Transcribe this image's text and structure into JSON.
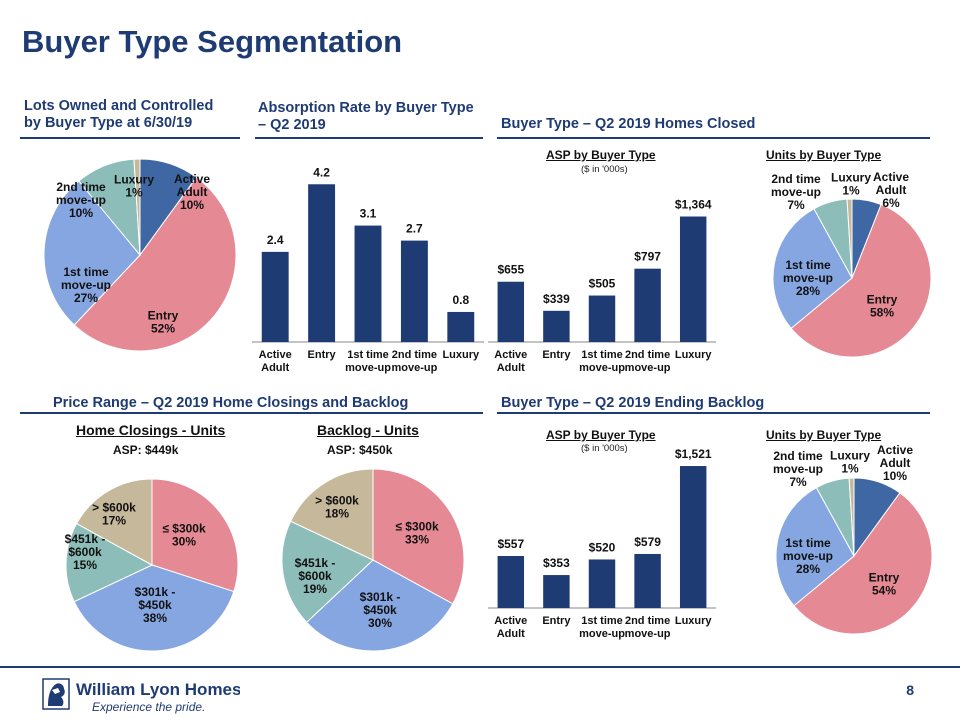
{
  "page": {
    "title": "Buyer Type Segmentation",
    "page_number": "8",
    "logo": {
      "name": "William Lyon Homes",
      "tagline": "Experience the pride."
    }
  },
  "colors": {
    "navy": "#1f3b73",
    "bar": "#1f3b73",
    "active_adult": "#3f67a4",
    "entry": "#e58a94",
    "first_time": "#86a6e2",
    "second_time": "#8dbdb8",
    "luxury": "#c6b89a"
  },
  "sections": {
    "lots": "Lots Owned and Controlled by Buyer Type at 6/30/19",
    "absorption": "Absorption Rate by Buyer Type – Q2 2019",
    "closed": "Buyer Type – Q2 2019 Homes Closed",
    "price": "Price Range – Q2 2019 Home Closings and Backlog",
    "backlog": "Buyer Type – Q2 2019 Ending Backlog"
  },
  "subheads": {
    "asp_closed": "ASP by Buyer Type",
    "asp_closed_note": "($ in '000s)",
    "units_closed": "Units by Buyer Type",
    "home_closings": "Home Closings - Units",
    "home_closings_asp": "ASP: $449k",
    "backlog_units": "Backlog - Units",
    "backlog_asp": "ASP: $450k",
    "asp_backlog": "ASP by Buyer Type",
    "asp_backlog_note": "($ in '000s)",
    "units_backlog": "Units by Buyer Type"
  },
  "chart_data": [
    {
      "id": "lots",
      "type": "pie",
      "labels": [
        "Active Adult",
        "Entry",
        "1st time move-up",
        "2nd time move-up",
        "Luxury"
      ],
      "values": [
        10,
        52,
        27,
        10,
        1
      ],
      "value_labels": [
        "10%",
        "52%",
        "27%",
        "10%",
        "1%"
      ]
    },
    {
      "id": "absorption",
      "type": "bar",
      "categories": [
        "Active Adult",
        "Entry",
        "1st time move-up",
        "2nd time move-up",
        "Luxury"
      ],
      "values": [
        2.4,
        4.2,
        3.1,
        2.7,
        0.8
      ],
      "value_labels": [
        "2.4",
        "4.2",
        "3.1",
        "2.7",
        "0.8"
      ],
      "ylim": [
        0,
        4.5
      ]
    },
    {
      "id": "asp_closed",
      "type": "bar",
      "categories": [
        "Active Adult",
        "Entry",
        "1st time move-up",
        "2nd time move-up",
        "Luxury"
      ],
      "values": [
        655,
        339,
        505,
        797,
        1364
      ],
      "value_labels": [
        "$655",
        "$339",
        "$505",
        "$797",
        "$1,364"
      ],
      "ylim": [
        0,
        1500
      ]
    },
    {
      "id": "units_closed",
      "type": "pie",
      "labels": [
        "Active Adult",
        "Entry",
        "1st time move-up",
        "2nd time move-up",
        "Luxury"
      ],
      "values": [
        6,
        58,
        28,
        7,
        1
      ],
      "value_labels": [
        "6%",
        "58%",
        "28%",
        "7%",
        "1%"
      ]
    },
    {
      "id": "home_closings",
      "type": "pie",
      "labels": [
        "≤ $300k",
        "$301k - $450k",
        "$451k - $600k",
        "> $600k"
      ],
      "values": [
        30,
        38,
        15,
        17
      ],
      "value_labels": [
        "30%",
        "38%",
        "15%",
        "17%"
      ]
    },
    {
      "id": "backlog_units",
      "type": "pie",
      "labels": [
        "≤ $300k",
        "$301k - $450k",
        "$451k - $600k",
        "> $600k"
      ],
      "values": [
        33,
        30,
        19,
        18
      ],
      "value_labels": [
        "33%",
        "30%",
        "19%",
        "18%"
      ]
    },
    {
      "id": "asp_backlog",
      "type": "bar",
      "categories": [
        "Active Adult",
        "Entry",
        "1st time move-up",
        "2nd time move-up",
        "Luxury"
      ],
      "values": [
        557,
        353,
        520,
        579,
        1521
      ],
      "value_labels": [
        "$557",
        "$353",
        "$520",
        "$579",
        "$1,521"
      ],
      "ylim": [
        0,
        1650
      ]
    },
    {
      "id": "units_backlog",
      "type": "pie",
      "labels": [
        "Active Adult",
        "Entry",
        "1st time move-up",
        "2nd time move-up",
        "Luxury"
      ],
      "values": [
        10,
        54,
        28,
        7,
        1
      ],
      "value_labels": [
        "10%",
        "54%",
        "28%",
        "7%",
        "1%"
      ]
    }
  ]
}
